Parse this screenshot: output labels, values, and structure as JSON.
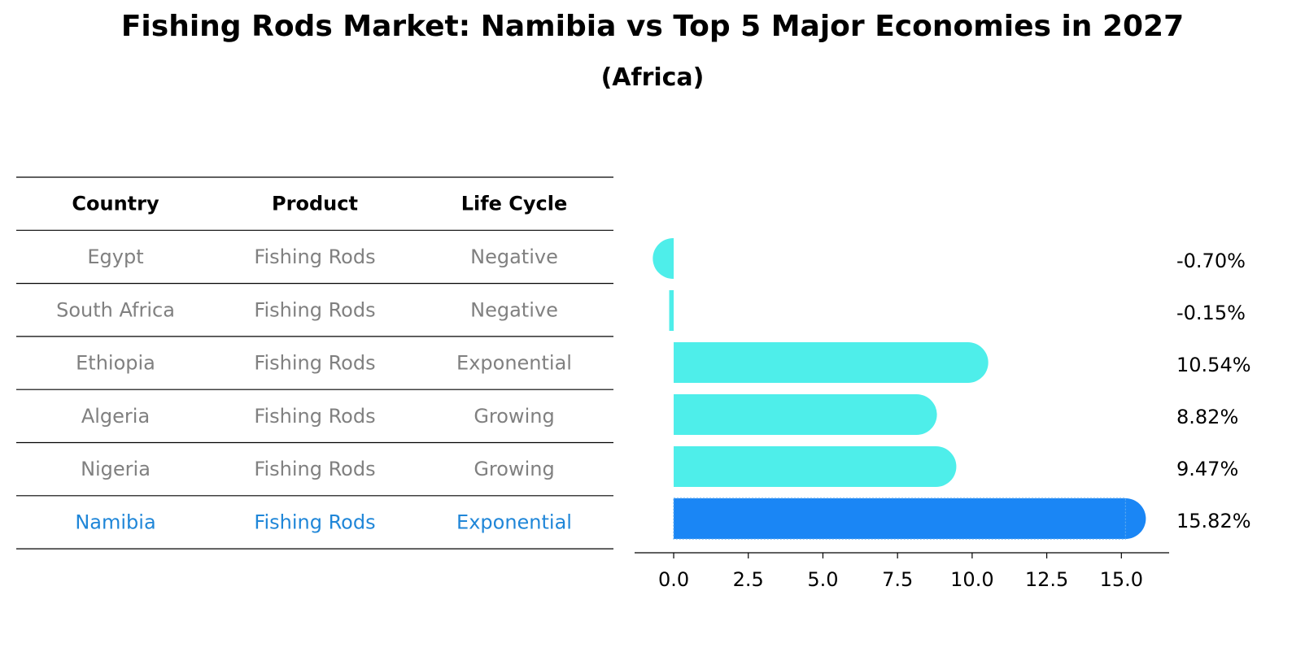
{
  "title": "Fishing Rods Market: Namibia vs Top 5 Major Economies in 2027",
  "subtitle": "(Africa)",
  "colors": {
    "bar": "#4EEEEA",
    "highlight": "#1A86F5",
    "muted_text": "#808080",
    "highlight_text": "#1F86D8",
    "line": "#000000"
  },
  "table": {
    "headers": [
      "Country",
      "Product",
      "Life Cycle"
    ],
    "rows": [
      {
        "country": "Egypt",
        "product": "Fishing Rods",
        "life_cycle": "Negative",
        "highlight": false
      },
      {
        "country": "South Africa",
        "product": "Fishing Rods",
        "life_cycle": "Negative",
        "highlight": false
      },
      {
        "country": "Ethiopia",
        "product": "Fishing Rods",
        "life_cycle": "Exponential",
        "highlight": false
      },
      {
        "country": "Algeria",
        "product": "Fishing Rods",
        "life_cycle": "Growing",
        "highlight": false
      },
      {
        "country": "Nigeria",
        "product": "Fishing Rods",
        "life_cycle": "Growing",
        "highlight": false
      },
      {
        "country": "Namibia",
        "product": "Fishing Rods",
        "life_cycle": "Exponential",
        "highlight": true
      }
    ]
  },
  "chart_data": {
    "type": "bar",
    "orientation": "horizontal",
    "title": "Fishing Rods Market: Namibia vs Top 5 Major Economies in 2027",
    "subtitle": "(Africa)",
    "categories": [
      "Egypt",
      "South Africa",
      "Ethiopia",
      "Algeria",
      "Nigeria",
      "Namibia"
    ],
    "values": [
      -0.7,
      -0.15,
      10.54,
      8.82,
      9.47,
      15.82
    ],
    "value_labels": [
      "-0.70%",
      "-0.15%",
      "10.54%",
      "8.82%",
      "9.47%",
      "15.82%"
    ],
    "highlight": "Namibia",
    "xlim": [
      -1.5,
      16.6
    ],
    "xticks": [
      0.0,
      2.5,
      5.0,
      7.5,
      10.0,
      12.5,
      15.0
    ],
    "xtick_labels": [
      "0.0",
      "2.5",
      "5.0",
      "7.5",
      "10.0",
      "12.5",
      "15.0"
    ],
    "xlabel": "",
    "ylabel": "",
    "grid": false
  }
}
